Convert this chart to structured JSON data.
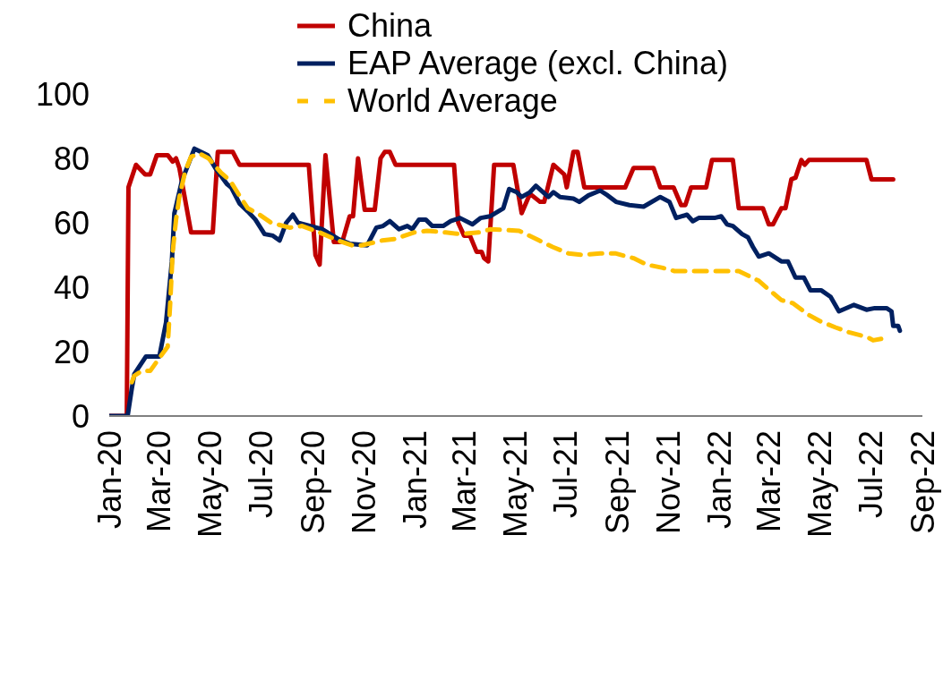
{
  "chart_data": {
    "type": "line",
    "legend": "top",
    "marker": "none",
    "grid": false,
    "xlim": [
      "2020-01-01",
      "2022-09-01"
    ],
    "xticks": [
      {
        "value": "2020-01-01",
        "label": "Jan-20"
      },
      {
        "value": "2020-03-01",
        "label": "Mar-20"
      },
      {
        "value": "2020-05-01",
        "label": "May-20"
      },
      {
        "value": "2020-07-01",
        "label": "Jul-20"
      },
      {
        "value": "2020-09-01",
        "label": "Sep-20"
      },
      {
        "value": "2020-11-01",
        "label": "Nov-20"
      },
      {
        "value": "2021-01-01",
        "label": "Jan-21"
      },
      {
        "value": "2021-03-01",
        "label": "Mar-21"
      },
      {
        "value": "2021-05-01",
        "label": "May-21"
      },
      {
        "value": "2021-07-01",
        "label": "Jul-21"
      },
      {
        "value": "2021-09-01",
        "label": "Sep-21"
      },
      {
        "value": "2021-11-01",
        "label": "Nov-21"
      },
      {
        "value": "2022-01-01",
        "label": "Jan-22"
      },
      {
        "value": "2022-03-01",
        "label": "Mar-22"
      },
      {
        "value": "2022-05-01",
        "label": "May-22"
      },
      {
        "value": "2022-07-01",
        "label": "Jul-22"
      },
      {
        "value": "2022-09-01",
        "label": "Sep-22"
      }
    ],
    "ylim": [
      0,
      100
    ],
    "yticks": [
      0,
      20,
      40,
      60,
      80,
      100
    ],
    "series": [
      {
        "name": "China",
        "color": "#c00000",
        "line_style": "solid",
        "x": [
          "2020-01-01",
          "2020-01-22",
          "2020-01-24",
          "2020-02-02",
          "2020-02-13",
          "2020-02-19",
          "2020-02-27",
          "2020-03-11",
          "2020-03-17",
          "2020-03-21",
          "2020-03-25",
          "2020-04-08",
          "2020-05-04",
          "2020-05-10",
          "2020-05-28",
          "2020-06-05",
          "2020-08-27",
          "2020-09-04",
          "2020-09-09",
          "2020-09-16",
          "2020-09-26",
          "2020-10-06",
          "2020-10-15",
          "2020-10-19",
          "2020-10-25",
          "2020-11-02",
          "2020-11-14",
          "2020-11-21",
          "2020-11-26",
          "2020-12-02",
          "2020-12-09",
          "2021-02-17",
          "2021-02-22",
          "2021-03-01",
          "2021-03-08",
          "2021-03-16",
          "2021-03-22",
          "2021-03-25",
          "2021-03-30",
          "2021-04-06",
          "2021-04-29",
          "2021-05-09",
          "2021-05-19",
          "2021-05-31",
          "2021-06-05",
          "2021-06-16",
          "2021-06-29",
          "2021-07-02",
          "2021-07-10",
          "2021-07-15",
          "2021-07-23",
          "2021-09-10",
          "2021-09-20",
          "2021-10-14",
          "2021-10-22",
          "2021-11-07",
          "2021-11-16",
          "2021-11-21",
          "2021-11-28",
          "2021-12-16",
          "2021-12-23",
          "2022-01-17",
          "2022-01-24",
          "2022-02-22",
          "2022-03-01",
          "2022-03-06",
          "2022-03-16",
          "2022-03-21",
          "2022-03-28",
          "2022-04-02",
          "2022-04-09",
          "2022-04-13",
          "2022-04-18",
          "2022-06-26",
          "2022-07-02",
          "2022-07-28"
        ],
        "values": [
          0,
          0,
          71,
          78,
          75,
          75,
          81,
          81,
          79,
          80,
          77,
          57,
          57,
          82,
          82,
          78,
          78,
          50,
          47,
          81,
          54,
          54,
          62,
          62,
          80,
          64,
          64,
          80,
          82,
          82,
          78,
          78,
          60,
          56,
          56,
          51,
          51,
          49,
          48,
          78,
          78,
          63,
          69,
          66.5,
          66.5,
          78,
          75,
          71,
          82,
          82,
          71,
          71,
          77,
          77,
          71,
          71,
          65.5,
          65.5,
          71,
          71,
          79.5,
          79.5,
          64.5,
          64.5,
          59.5,
          59.5,
          64.5,
          64.5,
          73.5,
          74,
          79.5,
          78,
          79.5,
          79.5,
          73.5,
          73.5
        ]
      },
      {
        "name": "EAP Average (excl. China)",
        "color": "#002060",
        "line_style": "solid",
        "x": [
          "2020-01-01",
          "2020-01-23",
          "2020-01-28",
          "2020-01-31",
          "2020-02-14",
          "2020-03-01",
          "2020-03-09",
          "2020-03-16",
          "2020-03-19",
          "2020-03-28",
          "2020-04-12",
          "2020-04-28",
          "2020-05-07",
          "2020-05-21",
          "2020-05-26",
          "2020-06-05",
          "2020-06-15",
          "2020-06-24",
          "2020-07-05",
          "2020-07-15",
          "2020-07-23",
          "2020-07-31",
          "2020-08-08",
          "2020-08-14",
          "2020-08-29",
          "2020-09-12",
          "2020-10-01",
          "2020-10-15",
          "2020-11-05",
          "2020-11-16",
          "2020-11-24",
          "2020-12-02",
          "2020-12-13",
          "2020-12-23",
          "2020-12-29",
          "2021-01-06",
          "2021-01-14",
          "2021-01-22",
          "2021-02-04",
          "2021-02-13",
          "2021-02-24",
          "2021-03-11",
          "2021-03-21",
          "2021-04-01",
          "2021-04-17",
          "2021-04-24",
          "2021-05-03",
          "2021-05-09",
          "2021-05-19",
          "2021-05-26",
          "2021-06-10",
          "2021-06-16",
          "2021-06-24",
          "2021-07-10",
          "2021-07-17",
          "2021-07-28",
          "2021-08-11",
          "2021-08-20",
          "2021-08-30",
          "2021-09-15",
          "2021-10-02",
          "2021-10-22",
          "2021-11-02",
          "2021-11-10",
          "2021-11-23",
          "2021-11-30",
          "2021-12-07",
          "2021-12-26",
          "2022-01-03",
          "2022-01-10",
          "2022-01-17",
          "2022-01-28",
          "2022-02-04",
          "2022-02-10",
          "2022-02-17",
          "2022-03-01",
          "2022-03-16",
          "2022-03-24",
          "2022-04-02",
          "2022-04-12",
          "2022-04-20",
          "2022-05-03",
          "2022-05-14",
          "2022-05-24",
          "2022-06-11",
          "2022-06-26",
          "2022-07-06",
          "2022-07-20",
          "2022-07-26",
          "2022-07-28",
          "2022-08-03",
          "2022-08-05"
        ],
        "values": [
          0,
          0,
          8.5,
          13,
          18.5,
          18.5,
          29,
          48,
          63,
          73,
          83,
          81,
          77,
          72,
          71,
          66,
          63.5,
          61,
          56.5,
          56,
          54.5,
          60,
          62.5,
          60,
          59,
          58,
          55,
          53.5,
          53,
          58.5,
          59,
          60.5,
          58,
          59,
          58,
          61,
          61,
          59,
          59,
          60.5,
          61.5,
          59.5,
          61.5,
          62,
          64.5,
          70.5,
          69.5,
          68,
          69.5,
          71.5,
          68,
          69.5,
          68,
          67.5,
          66.5,
          68.5,
          70,
          68.5,
          66.5,
          65.5,
          65,
          68,
          66.5,
          61.5,
          62.5,
          60.5,
          61.5,
          61.5,
          62,
          59.5,
          59,
          56.5,
          55.5,
          52.5,
          49.5,
          50.5,
          48,
          48,
          43,
          43,
          39,
          39,
          37,
          32.5,
          34.5,
          33,
          33.5,
          33.5,
          32.5,
          28,
          28,
          26.5
        ]
      },
      {
        "name": "World Average",
        "color": "#ffc000",
        "line_style": "dashed",
        "x": [
          "2020-01-28",
          "2020-01-31",
          "2020-02-09",
          "2020-02-19",
          "2020-03-01",
          "2020-03-11",
          "2020-03-14",
          "2020-03-17",
          "2020-03-21",
          "2020-03-25",
          "2020-04-01",
          "2020-04-08",
          "2020-04-18",
          "2020-04-29",
          "2020-05-14",
          "2020-05-25",
          "2020-06-06",
          "2020-06-15",
          "2020-06-29",
          "2020-07-13",
          "2020-08-04",
          "2020-08-19",
          "2020-09-09",
          "2020-10-01",
          "2020-10-18",
          "2020-10-29",
          "2020-11-23",
          "2020-12-09",
          "2020-12-31",
          "2021-01-16",
          "2021-02-07",
          "2021-02-24",
          "2021-03-19",
          "2021-04-02",
          "2021-05-06",
          "2021-05-14",
          "2021-05-30",
          "2021-06-15",
          "2021-07-04",
          "2021-07-21",
          "2021-08-11",
          "2021-08-29",
          "2021-09-20",
          "2021-10-06",
          "2021-10-25",
          "2021-11-08",
          "2021-11-30",
          "2021-12-18",
          "2022-01-10",
          "2022-01-24",
          "2022-02-17",
          "2022-02-28",
          "2022-03-16",
          "2022-03-30",
          "2022-04-17",
          "2022-05-01",
          "2022-05-20",
          "2022-06-05",
          "2022-06-27",
          "2022-07-04",
          "2022-07-15"
        ],
        "values": [
          10.5,
          12.5,
          14,
          14,
          18,
          21.5,
          35,
          51,
          61,
          68,
          76,
          80.5,
          81.5,
          80,
          75.5,
          73,
          68,
          64.5,
          62.5,
          60,
          58.5,
          59,
          57,
          54.5,
          53,
          53,
          54.5,
          55,
          57,
          57.5,
          57,
          56.5,
          57,
          58,
          57.5,
          56.5,
          54.5,
          52.5,
          50.5,
          50,
          50.5,
          50.5,
          49,
          47,
          46,
          45,
          45,
          45,
          45,
          45,
          42,
          39.5,
          36,
          35,
          31.5,
          29.5,
          27.5,
          26,
          24.5,
          23.5,
          24
        ]
      }
    ]
  }
}
